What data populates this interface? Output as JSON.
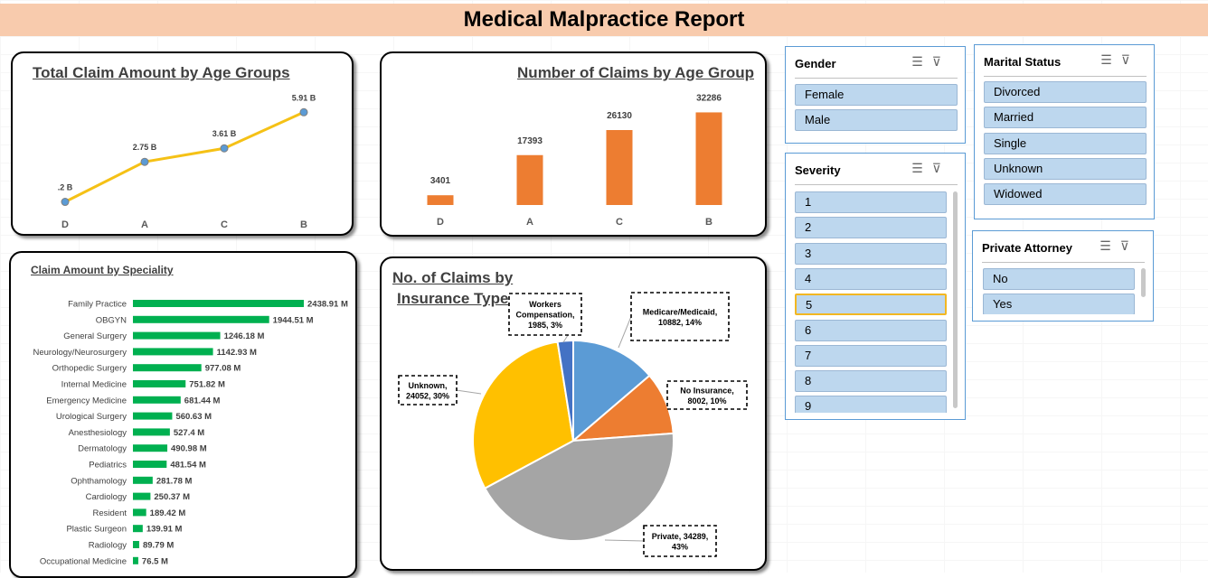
{
  "report": {
    "title": "Medical Malpractice Report"
  },
  "chart_data": [
    {
      "id": "line_age",
      "type": "line",
      "title": "Total Claim Amount by Age Groups",
      "categories": [
        "D",
        "A",
        "C",
        "B"
      ],
      "values": [
        0.2,
        2.75,
        3.61,
        5.91
      ],
      "labels": [
        ".2 B",
        "2.75 B",
        "3.61 B",
        "5.91 B"
      ],
      "ylim": [
        0,
        6.5
      ],
      "color": "#f5c116",
      "marker_color": "#5b9bd5"
    },
    {
      "id": "bar_age",
      "type": "bar",
      "title": "Number of Claims by Age Group",
      "categories": [
        "D",
        "A",
        "C",
        "B"
      ],
      "values": [
        3401,
        17393,
        26130,
        32286
      ],
      "ylim": [
        0,
        34000
      ],
      "color": "#ed7d31"
    },
    {
      "id": "bar_speciality",
      "type": "bar",
      "orientation": "horizontal",
      "title": "Claim Amount by Speciality",
      "categories": [
        "Family Practice",
        "OBGYN",
        "General Surgery",
        "Neurology/Neurosurgery",
        "Orthopedic Surgery",
        "Internal Medicine",
        "Emergency Medicine",
        "Urological Surgery",
        "Anesthesiology",
        "Dermatology",
        "Pediatrics",
        "Ophthamology",
        "Cardiology",
        "Resident",
        "Plastic Surgeon",
        "Radiology",
        "Occupational Medicine"
      ],
      "values": [
        2438.91,
        1944.51,
        1246.18,
        1142.93,
        977.08,
        751.82,
        681.44,
        560.63,
        527.4,
        490.98,
        481.54,
        281.78,
        250.37,
        189.42,
        139.91,
        89.79,
        76.5
      ],
      "labels": [
        "2438.91 M",
        "1944.51 M",
        "1246.18 M",
        "1142.93 M",
        "977.08 M",
        "751.82 M",
        "681.44 M",
        "560.63 M",
        "527.4 M",
        "490.98 M",
        "481.54 M",
        "281.78 M",
        "250.37 M",
        "189.42 M",
        "139.91 M",
        "89.79 M",
        "76.5 M"
      ],
      "color": "#00b050"
    },
    {
      "id": "pie_insurance",
      "type": "pie",
      "title": [
        "No. of Claims by",
        "Insurance Type"
      ],
      "slices": [
        {
          "name": "Medicare/Medicaid",
          "value": 10882,
          "pct": "14%",
          "color": "#5b9bd5",
          "label": [
            "Medicare/Medicaid,",
            "10882, 14%"
          ]
        },
        {
          "name": "No Insurance",
          "value": 8002,
          "pct": "10%",
          "color": "#ed7d31",
          "label": [
            "No Insurance,",
            "8002, 10%"
          ]
        },
        {
          "name": "Private",
          "value": 34289,
          "pct": "43%",
          "color": "#a5a5a5",
          "label": [
            "Private, 34289,",
            "43%"
          ]
        },
        {
          "name": "Unknown",
          "value": 24052,
          "pct": "30%",
          "color": "#ffc000",
          "label": [
            "Unknown,",
            "24052, 30%"
          ]
        },
        {
          "name": "Workers Compensation",
          "value": 1985,
          "pct": "3%",
          "color": "#4472c4",
          "label": [
            "Workers",
            "Compensation,",
            "1985, 3%"
          ]
        }
      ]
    }
  ],
  "slicers": {
    "gender": {
      "title": "Gender",
      "items": [
        "Female",
        "Male"
      ]
    },
    "marital": {
      "title": "Marital Status",
      "items": [
        "Divorced",
        "Married",
        "Single",
        "Unknown",
        "Widowed"
      ]
    },
    "severity": {
      "title": "Severity",
      "items": [
        "1",
        "2",
        "3",
        "4",
        "5",
        "6",
        "7",
        "8",
        "9"
      ],
      "selected": "5"
    },
    "attorney": {
      "title": "Private Attorney",
      "items": [
        "No",
        "Yes"
      ]
    }
  },
  "icons": {
    "multiselect": "multi-select-icon",
    "clearfilter": "clear-filter-icon"
  }
}
